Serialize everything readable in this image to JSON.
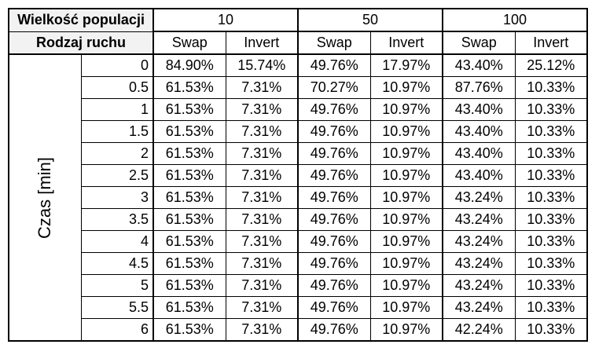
{
  "table": {
    "population_label": "Wielkość populacji",
    "move_label": "Rodzaj ruchu",
    "time_label": "Czas [min]",
    "groups": [
      "10",
      "50",
      "100"
    ],
    "moves": [
      "Swap",
      "Invert",
      "Swap",
      "Invert",
      "Swap",
      "Invert"
    ],
    "rows": [
      {
        "t": "0",
        "v": [
          "84.90%",
          "15.74%",
          "49.76%",
          "17.97%",
          "43.40%",
          "25.12%"
        ]
      },
      {
        "t": "0.5",
        "v": [
          "61.53%",
          "7.31%",
          "70.27%",
          "10.97%",
          "87.76%",
          "10.33%"
        ]
      },
      {
        "t": "1",
        "v": [
          "61.53%",
          "7.31%",
          "49.76%",
          "10.97%",
          "43.40%",
          "10.33%"
        ]
      },
      {
        "t": "1.5",
        "v": [
          "61.53%",
          "7.31%",
          "49.76%",
          "10.97%",
          "43.40%",
          "10.33%"
        ]
      },
      {
        "t": "2",
        "v": [
          "61.53%",
          "7.31%",
          "49.76%",
          "10.97%",
          "43.40%",
          "10.33%"
        ]
      },
      {
        "t": "2.5",
        "v": [
          "61.53%",
          "7.31%",
          "49.76%",
          "10.97%",
          "43.40%",
          "10.33%"
        ]
      },
      {
        "t": "3",
        "v": [
          "61.53%",
          "7.31%",
          "49.76%",
          "10.97%",
          "43.24%",
          "10.33%"
        ]
      },
      {
        "t": "3.5",
        "v": [
          "61.53%",
          "7.31%",
          "49.76%",
          "10.97%",
          "43.24%",
          "10.33%"
        ]
      },
      {
        "t": "4",
        "v": [
          "61.53%",
          "7.31%",
          "49.76%",
          "10.97%",
          "43.24%",
          "10.33%"
        ]
      },
      {
        "t": "4.5",
        "v": [
          "61.53%",
          "7.31%",
          "49.76%",
          "10.97%",
          "43.24%",
          "10.33%"
        ]
      },
      {
        "t": "5",
        "v": [
          "61.53%",
          "7.31%",
          "49.76%",
          "10.97%",
          "43.24%",
          "10.33%"
        ]
      },
      {
        "t": "5.5",
        "v": [
          "61.53%",
          "7.31%",
          "49.76%",
          "10.97%",
          "43.24%",
          "10.33%"
        ]
      },
      {
        "t": "6",
        "v": [
          "61.53%",
          "7.31%",
          "49.76%",
          "10.97%",
          "42.24%",
          "10.33%"
        ]
      }
    ]
  }
}
